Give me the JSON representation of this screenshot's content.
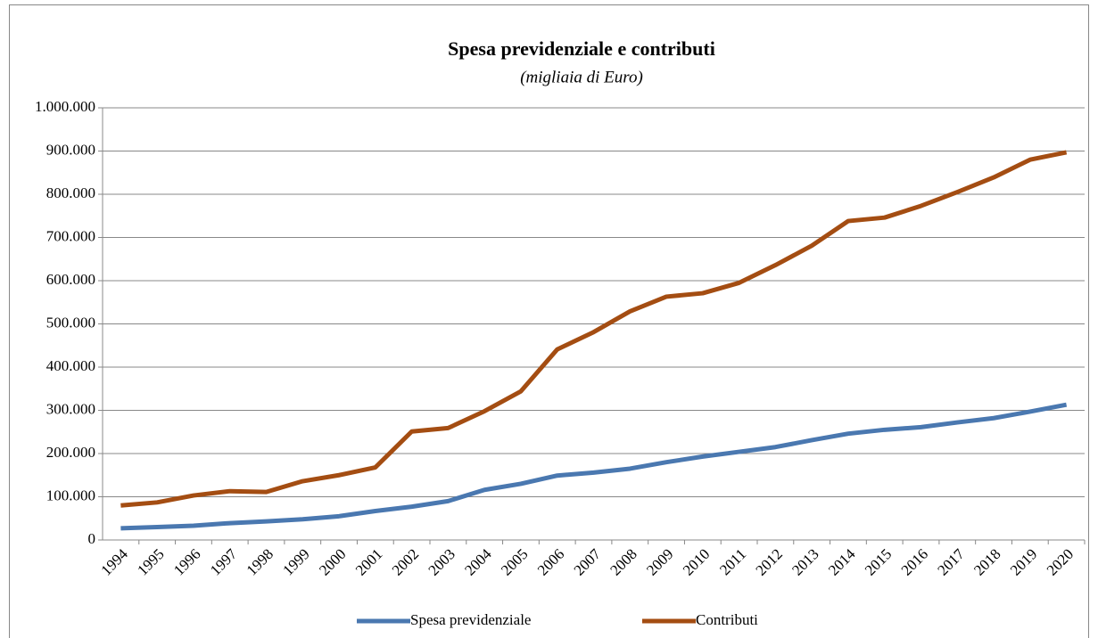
{
  "chart_data": {
    "type": "line",
    "title": "Spesa previdenziale e contributi",
    "subtitle": "(migliaia di Euro)",
    "categories": [
      "1994",
      "1995",
      "1996",
      "1997",
      "1998",
      "1999",
      "2000",
      "2001",
      "2002",
      "2003",
      "2004",
      "2005",
      "2006",
      "2007",
      "2008",
      "2009",
      "2010",
      "2011",
      "2012",
      "2013",
      "2014",
      "2015",
      "2016",
      "2017",
      "2018",
      "2019",
      "2020"
    ],
    "series": [
      {
        "name": "Spesa previdenziale",
        "color": "#4a78b0",
        "values": [
          27000,
          30000,
          33000,
          39000,
          43000,
          48000,
          55000,
          67000,
          77000,
          90000,
          116000,
          130000,
          149000,
          156000,
          165000,
          180000,
          193000,
          204000,
          215000,
          231000,
          246000,
          255000,
          261000,
          272000,
          282000,
          297000,
          313000
        ]
      },
      {
        "name": "Contributi",
        "color": "#a44d12",
        "values": [
          80000,
          87000,
          103000,
          113000,
          111000,
          136000,
          150000,
          168000,
          251000,
          259000,
          298000,
          344000,
          441000,
          481000,
          529000,
          563000,
          571000,
          595000,
          636000,
          681000,
          738000,
          746000,
          773000,
          805000,
          839000,
          880000,
          897000
        ]
      }
    ],
    "ylim": [
      0,
      1000000
    ],
    "yticks": [
      0,
      {
        "value": 100000,
        "label": "100.000"
      },
      {
        "value": 200000,
        "label": "200.000"
      },
      {
        "value": 300000,
        "label": "300.000"
      },
      {
        "value": 400000,
        "label": "400.000"
      },
      {
        "value": 500000,
        "label": "500.000"
      },
      {
        "value": 600000,
        "label": "600.000"
      },
      {
        "value": 700000,
        "label": "700.000"
      },
      {
        "value": 800000,
        "label": "800.000"
      },
      {
        "value": 900000,
        "label": "900.000"
      },
      {
        "value": 1000000,
        "label": "1.000.000"
      }
    ],
    "grid": true,
    "legend": "bottom"
  }
}
